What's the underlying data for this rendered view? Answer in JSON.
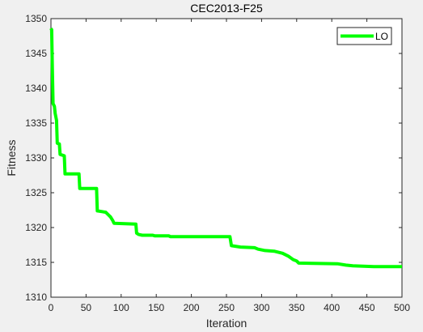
{
  "chart_data": {
    "type": "line",
    "title": "CEC2013-F25",
    "xlabel": "Iteration",
    "ylabel": "Fitness",
    "xlim": [
      0,
      500
    ],
    "ylim": [
      1310,
      1350
    ],
    "xticks": [
      0,
      50,
      100,
      150,
      200,
      250,
      300,
      350,
      400,
      450,
      500
    ],
    "yticks": [
      1310,
      1315,
      1320,
      1325,
      1330,
      1335,
      1340,
      1345,
      1350
    ],
    "grid": false,
    "legend_position": "top-right",
    "series": [
      {
        "name": "LO",
        "color": "#00ff00",
        "points": [
          [
            0,
            1348.6
          ],
          [
            1,
            1348.4
          ],
          [
            2,
            1343.0
          ],
          [
            3,
            1337.8
          ],
          [
            5,
            1337.4
          ],
          [
            6,
            1336.4
          ],
          [
            8,
            1335.4
          ],
          [
            9,
            1332.1
          ],
          [
            12,
            1332.0
          ],
          [
            13,
            1330.5
          ],
          [
            19,
            1330.3
          ],
          [
            20,
            1327.7
          ],
          [
            40,
            1327.7
          ],
          [
            41,
            1325.6
          ],
          [
            65,
            1325.6
          ],
          [
            66,
            1322.4
          ],
          [
            78,
            1322.2
          ],
          [
            82,
            1321.8
          ],
          [
            85,
            1321.5
          ],
          [
            88,
            1321.0
          ],
          [
            90,
            1320.6
          ],
          [
            121,
            1320.5
          ],
          [
            122,
            1319.2
          ],
          [
            125,
            1319.0
          ],
          [
            130,
            1318.9
          ],
          [
            145,
            1318.9
          ],
          [
            148,
            1318.8
          ],
          [
            168,
            1318.8
          ],
          [
            170,
            1318.7
          ],
          [
            255,
            1318.7
          ],
          [
            257,
            1317.4
          ],
          [
            270,
            1317.2
          ],
          [
            290,
            1317.1
          ],
          [
            295,
            1316.9
          ],
          [
            305,
            1316.7
          ],
          [
            318,
            1316.6
          ],
          [
            330,
            1316.3
          ],
          [
            338,
            1315.9
          ],
          [
            342,
            1315.6
          ],
          [
            345,
            1315.4
          ],
          [
            350,
            1315.2
          ],
          [
            353,
            1314.9
          ],
          [
            408,
            1314.8
          ],
          [
            420,
            1314.6
          ],
          [
            430,
            1314.5
          ],
          [
            460,
            1314.4
          ],
          [
            500,
            1314.4
          ]
        ]
      }
    ]
  }
}
